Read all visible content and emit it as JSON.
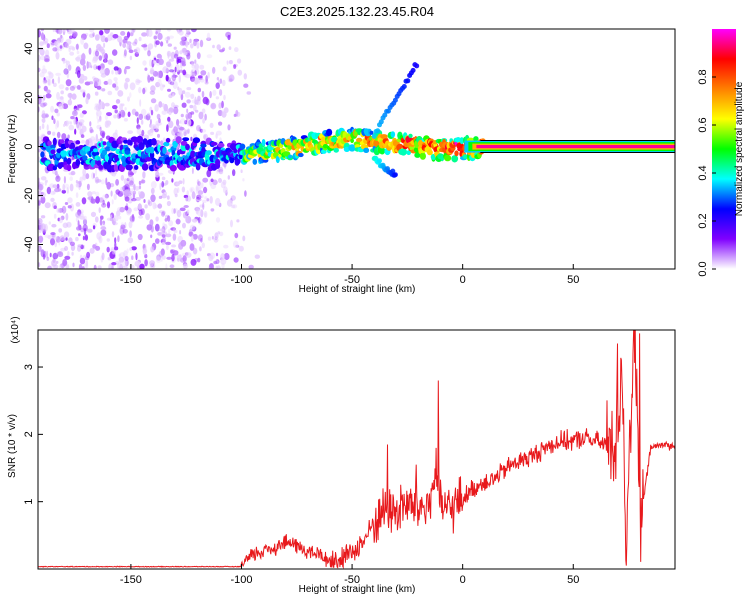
{
  "title": "C2E3.2025.132.23.45.R04",
  "chart_data": [
    {
      "type": "heatmap",
      "xlabel": "Height of straight line (km)",
      "ylabel": "Frequency (Hz)",
      "xlim": [
        -192,
        96
      ],
      "ylim": [
        -50,
        48
      ],
      "x_ticks": [
        "-150",
        "-100",
        "-50",
        "0",
        "50"
      ],
      "y_ticks": [
        "-40",
        "-20",
        "0",
        "20",
        "40"
      ],
      "colorbar": {
        "label": "Normalized spectral amplitude",
        "ticks": [
          "0.0",
          "0.2",
          "0.4",
          "0.6",
          "0.8"
        ],
        "range": [
          0,
          1
        ],
        "colors": [
          "#ffffff",
          "#8000ff",
          "#0000ff",
          "#00ffff",
          "#00ff00",
          "#ffff00",
          "#ff8000",
          "#ff0000",
          "#ff00ff"
        ]
      },
      "features": {
        "noise_region_x": [
          -192,
          -115
        ],
        "main_band": {
          "x": [
            -190,
            -150,
            -120,
            -100,
            -80,
            -60,
            -50,
            -40,
            -30,
            -20,
            -10,
            0,
            10,
            50,
            96
          ],
          "freq": [
            -3,
            -3,
            -3,
            -3,
            -1,
            2,
            3,
            2,
            1,
            0,
            -1,
            -1,
            0,
            0,
            0
          ],
          "peak_amplitude": 1.0
        },
        "rising_branch": {
          "x": [
            -40,
            -20
          ],
          "freq": [
            5,
            35
          ]
        },
        "falling_branch": {
          "x": [
            -40,
            -30
          ],
          "freq": [
            -5,
            -12
          ]
        }
      }
    },
    {
      "type": "line",
      "xlabel": "Height of straight line (km)",
      "ylabel": "SNR (10 * v/v)",
      "multiplier": "(x10⁴)",
      "xlim": [
        -192,
        96
      ],
      "ylim": [
        0,
        3.55
      ],
      "x_ticks": [
        "-150",
        "-100",
        "-50",
        "0",
        "50"
      ],
      "y_ticks": [
        "1",
        "2",
        "3"
      ],
      "color": "#e8191c",
      "x": [
        -192,
        -170,
        -150,
        -130,
        -110,
        -100,
        -95,
        -90,
        -85,
        -80,
        -75,
        -70,
        -65,
        -60,
        -55,
        -50,
        -45,
        -40,
        -35,
        -30,
        -25,
        -20,
        -15,
        -12,
        -10,
        -5,
        0,
        5,
        10,
        15,
        20,
        25,
        30,
        35,
        40,
        45,
        50,
        55,
        60,
        65,
        70,
        72,
        74,
        76,
        78,
        80,
        85,
        90,
        96
      ],
      "y": [
        0.03,
        0.03,
        0.03,
        0.03,
        0.03,
        0.06,
        0.2,
        0.28,
        0.32,
        0.4,
        0.35,
        0.25,
        0.22,
        0.12,
        0.15,
        0.25,
        0.4,
        0.7,
        0.9,
        0.85,
        0.95,
        0.9,
        0.95,
        1.5,
        0.9,
        0.9,
        1.05,
        1.2,
        1.3,
        1.35,
        1.5,
        1.6,
        1.65,
        1.75,
        1.85,
        1.9,
        1.9,
        1.95,
        1.9,
        1.85,
        2.0,
        3.2,
        0.1,
        2.5,
        3.4,
        0.6,
        1.8,
        1.85,
        1.82
      ],
      "spikes": [
        {
          "x": -34,
          "y": 1.85
        },
        {
          "x": -28,
          "y": 1.25
        },
        {
          "x": -21,
          "y": 1.55
        },
        {
          "x": -11,
          "y": 2.8
        },
        {
          "x": 70,
          "y": 3.35
        },
        {
          "x": 74,
          "y": 0.05
        },
        {
          "x": 77,
          "y": 3.2
        },
        {
          "x": 80,
          "y": 3.5
        }
      ]
    }
  ]
}
